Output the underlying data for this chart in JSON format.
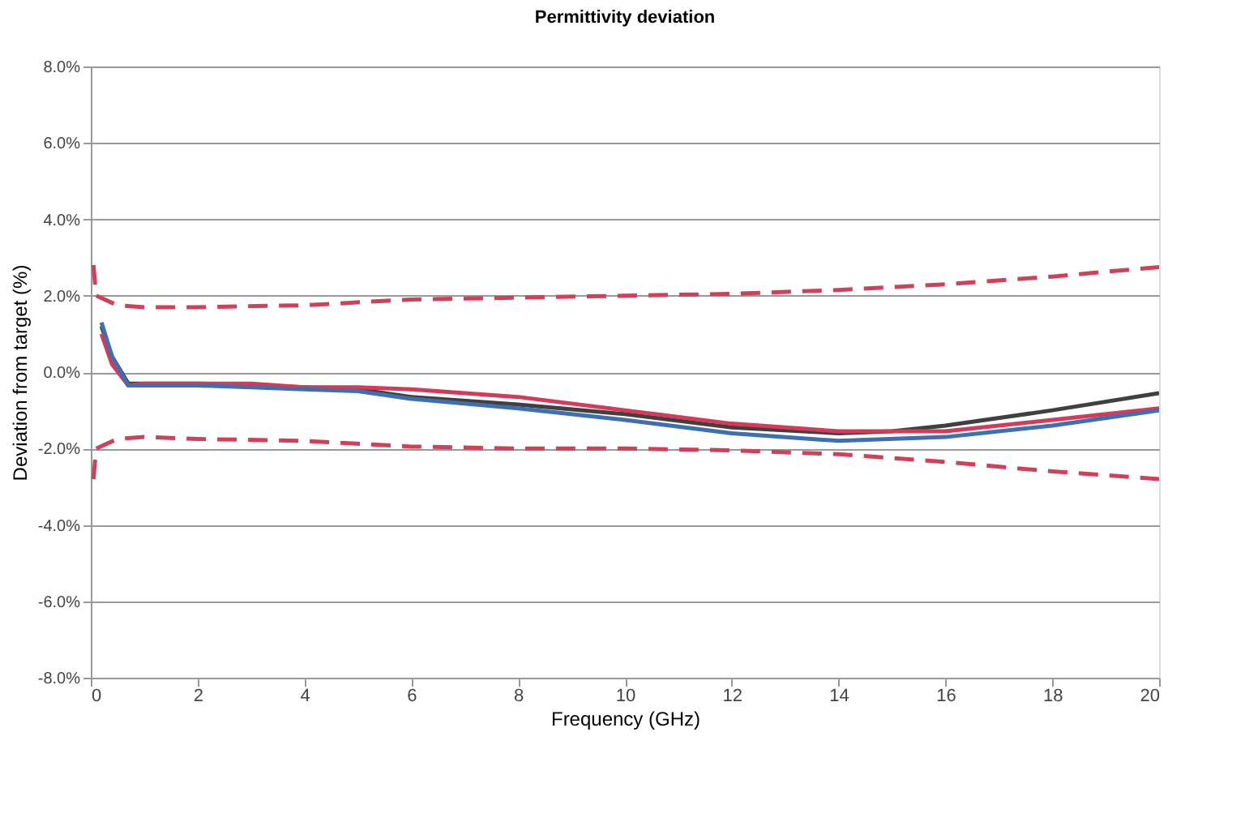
{
  "chart_data": {
    "type": "line",
    "title": "Permittivity deviation",
    "xlabel": "Frequency (GHz)",
    "ylabel": "Deviation from target (%)",
    "xlim": [
      0,
      20
    ],
    "xticks": [
      0,
      2,
      4,
      6,
      8,
      10,
      12,
      14,
      16,
      18,
      20
    ],
    "ylim": [
      -8,
      8
    ],
    "yticks": [
      {
        "value": -8,
        "label": "-8.0%"
      },
      {
        "value": -6,
        "label": "-6.0%"
      },
      {
        "value": -4,
        "label": "-4.0%"
      },
      {
        "value": -2,
        "label": "-2.0%"
      },
      {
        "value": 0,
        "label": "0.0%"
      },
      {
        "value": 2,
        "label": "2.0%"
      },
      {
        "value": 4,
        "label": "4.0%"
      },
      {
        "value": 6,
        "label": "6.0%"
      },
      {
        "value": 8,
        "label": "8.0%"
      }
    ],
    "grid": "y",
    "legend": false,
    "marker": "none",
    "series": [
      {
        "color": "#d0405a",
        "line_style": "dashed",
        "x": [
          0.05,
          0.1,
          0.5,
          1,
          2,
          4,
          6,
          8,
          10,
          12,
          14,
          16,
          18,
          20
        ],
        "values": [
          2.8,
          2.0,
          1.75,
          1.7,
          1.7,
          1.75,
          1.9,
          1.95,
          2.0,
          2.05,
          2.15,
          2.3,
          2.5,
          2.75
        ]
      },
      {
        "color": "#d0405a",
        "line_style": "dashed",
        "x": [
          0.05,
          0.1,
          0.5,
          1,
          2,
          4,
          6,
          8,
          10,
          12,
          14,
          16,
          18,
          20
        ],
        "values": [
          -2.8,
          -2.0,
          -1.75,
          -1.7,
          -1.75,
          -1.8,
          -1.95,
          -2.0,
          -2.0,
          -2.05,
          -2.15,
          -2.35,
          -2.6,
          -2.8
        ]
      },
      {
        "color": "#404040",
        "line_style": "solid",
        "x": [
          0.2,
          0.4,
          0.7,
          1,
          2,
          3,
          4,
          5,
          6,
          8,
          10,
          12,
          14,
          15,
          16,
          18,
          20
        ],
        "values": [
          1.2,
          0.4,
          -0.3,
          -0.3,
          -0.3,
          -0.35,
          -0.4,
          -0.45,
          -0.65,
          -0.85,
          -1.1,
          -1.45,
          -1.6,
          -1.55,
          -1.4,
          -1.0,
          -0.55
        ]
      },
      {
        "color": "#d43a5a",
        "line_style": "solid",
        "x": [
          0.2,
          0.4,
          0.7,
          1,
          2,
          3,
          4,
          5,
          6,
          7,
          8,
          10,
          12,
          14,
          16,
          18,
          20
        ],
        "values": [
          1.0,
          0.2,
          -0.35,
          -0.3,
          -0.3,
          -0.3,
          -0.4,
          -0.4,
          -0.45,
          -0.55,
          -0.65,
          -1.0,
          -1.35,
          -1.55,
          -1.55,
          -1.25,
          -0.95
        ]
      },
      {
        "color": "#3e6fb0",
        "line_style": "solid",
        "x": [
          0.2,
          0.4,
          0.7,
          1,
          2,
          3,
          4,
          5,
          6,
          8,
          10,
          12,
          14,
          16,
          18,
          20
        ],
        "values": [
          1.3,
          0.4,
          -0.35,
          -0.35,
          -0.35,
          -0.4,
          -0.45,
          -0.5,
          -0.7,
          -0.95,
          -1.25,
          -1.6,
          -1.8,
          -1.7,
          -1.4,
          -1.0
        ]
      }
    ]
  }
}
